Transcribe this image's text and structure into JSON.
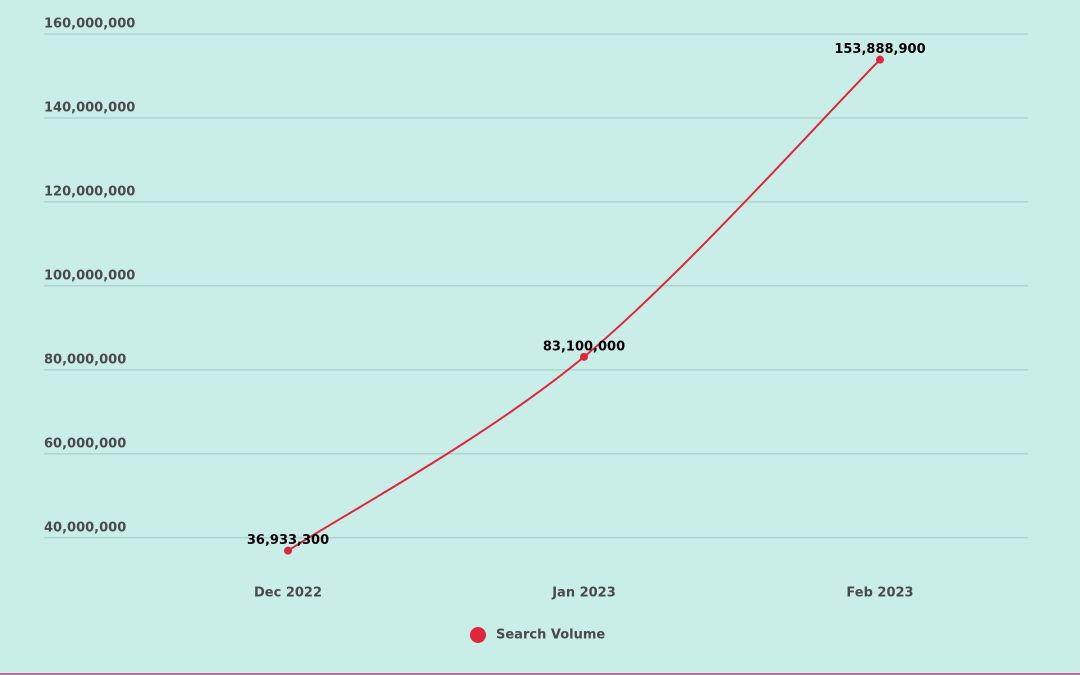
{
  "chart_data": {
    "type": "line",
    "categories": [
      "Dec 2022",
      "Jan 2023",
      "Feb 2023"
    ],
    "series": [
      {
        "name": "Search Volume",
        "color": "#e0253d",
        "values": [
          36933300,
          83100000,
          153888900
        ],
        "value_labels": [
          "36,933,300",
          "83,100,000",
          "153,888,900"
        ]
      }
    ],
    "ylim": [
      34000000,
      160000000
    ],
    "yticks": [
      {
        "value": 40000000,
        "label": "40,000,000"
      },
      {
        "value": 60000000,
        "label": "60,000,000"
      },
      {
        "value": 80000000,
        "label": "80,000,000"
      },
      {
        "value": 100000000,
        "label": "100,000,000"
      },
      {
        "value": 120000000,
        "label": "120,000,000"
      },
      {
        "value": 140000000,
        "label": "140,000,000"
      },
      {
        "value": 160000000,
        "label": "160,000,000"
      }
    ],
    "grid": true,
    "legend": "bottom"
  }
}
